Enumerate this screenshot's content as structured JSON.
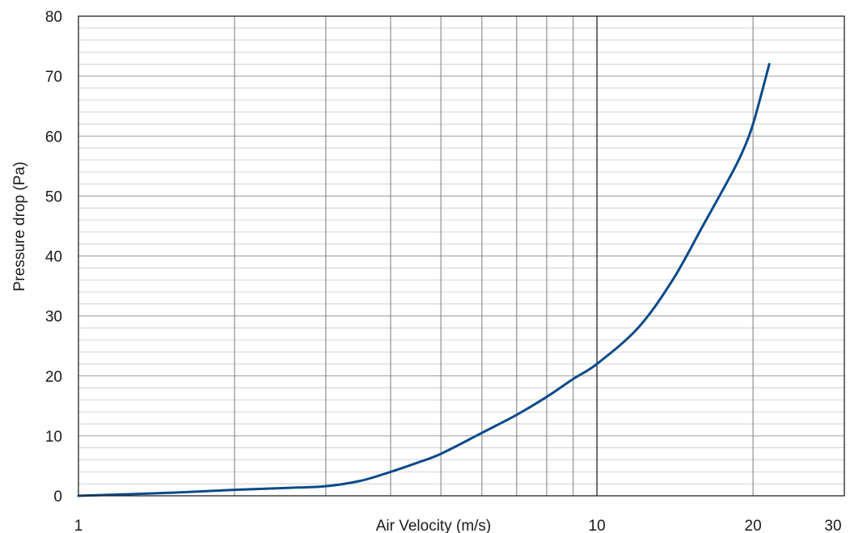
{
  "chart_data": {
    "type": "line",
    "xlabel": "Air Velocity (m/s)",
    "ylabel": "Pressure drop (Pa)",
    "x_scale": "log",
    "xlim": [
      1,
      30
    ],
    "ylim": [
      0,
      80
    ],
    "x_ticks": [
      1,
      10,
      20,
      30
    ],
    "x_tick_labels": [
      "1",
      "10",
      "20",
      "30"
    ],
    "x_gridlines": [
      2,
      3,
      4,
      5,
      6,
      7,
      8,
      9,
      10,
      20
    ],
    "y_ticks": [
      0,
      10,
      20,
      30,
      40,
      50,
      60,
      70,
      80
    ],
    "y_tick_labels": [
      "0",
      "10",
      "20",
      "30",
      "40",
      "50",
      "60",
      "70",
      "80"
    ],
    "y_minor_step": 2,
    "grid": true,
    "legend": "none",
    "series": [
      {
        "color": "#0b4a8b",
        "x": [
          1,
          1.5,
          2,
          2.5,
          3,
          3.5,
          4,
          4.5,
          5,
          6,
          7,
          8,
          9,
          10,
          12,
          14,
          16,
          18,
          19,
          20,
          21.5
        ],
        "y": [
          0,
          0.5,
          1.0,
          1.3,
          1.6,
          2.5,
          4.0,
          5.5,
          7.0,
          10.5,
          13.5,
          16.5,
          19.5,
          22,
          28,
          36,
          45,
          53,
          57,
          62,
          72
        ]
      }
    ]
  }
}
